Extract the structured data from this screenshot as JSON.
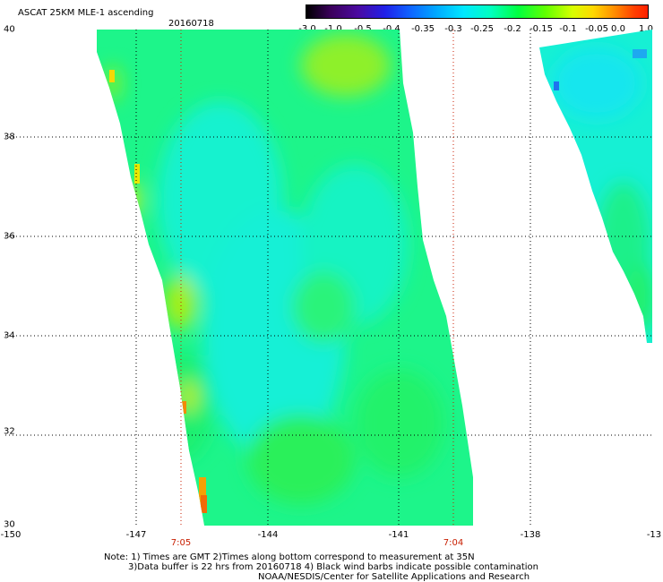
{
  "header": {
    "title": "ASCAT 25KM MLE-1 ascending",
    "date": "20160718"
  },
  "colorbar": {
    "labels": [
      "-3.0",
      "-1.0",
      "-0.5",
      "-0.4",
      "-0.35",
      "-0.3",
      "-0.25",
      "-0.2",
      "-0.15",
      "-0.1",
      "-0.05",
      "0.0",
      "1.0"
    ],
    "colors": [
      "#000000",
      "#4b0082",
      "#3b2bd6",
      "#1f55ff",
      "#1e90ff",
      "#00c8ff",
      "#00ffff",
      "#00ff9a",
      "#00ff00",
      "#7fff00",
      "#ffff00",
      "#ff9900",
      "#ff3300"
    ]
  },
  "axes": {
    "lat_labels": [
      "40",
      "38",
      "36",
      "34",
      "32",
      "30"
    ],
    "lon_labels": [
      "-150",
      "-147",
      "-144",
      "-141",
      "-138",
      "-13"
    ]
  },
  "times": [
    "7:05",
    "7:04"
  ],
  "notes": {
    "line1": "Note: 1) Times are GMT 2)Times along bottom correspond to measurement at 35N",
    "line2": "3)Data buffer is 22 hrs from 20160718 4) Black wind barbs indicate possible contamination",
    "line3": "NOAA/NESDIS/Center for Satellite Applications and Research"
  }
}
